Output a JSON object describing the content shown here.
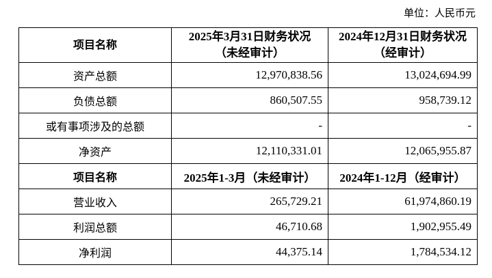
{
  "unit_label": "单位：人民币元",
  "balance_header": [
    "项目名称",
    "2025年3月31日财务状况（未经审计）",
    "2024年12月31日财务状况（经审计）"
  ],
  "balance_rows": [
    {
      "item": "资产总额",
      "v1": "12,970,838.56",
      "v2": "13,024,694.99"
    },
    {
      "item": "负债总额",
      "v1": "860,507.55",
      "v2": "958,739.12"
    },
    {
      "item": "或有事项涉及的总额",
      "v1": "-",
      "v2": "-"
    },
    {
      "item": "净资产",
      "v1": "12,110,331.01",
      "v2": "12,065,955.87"
    }
  ],
  "income_header": [
    "项目名称",
    "2025年1-3月（未经审计）",
    "2024年1-12月（经审计）"
  ],
  "income_rows": [
    {
      "item": "营业收入",
      "v1": "265,729.21",
      "v2": "61,974,860.19"
    },
    {
      "item": "利润总额",
      "v1": "46,710.68",
      "v2": "1,902,955.49"
    },
    {
      "item": "净利润",
      "v1": "44,375.14",
      "v2": "1,784,534.12"
    }
  ]
}
